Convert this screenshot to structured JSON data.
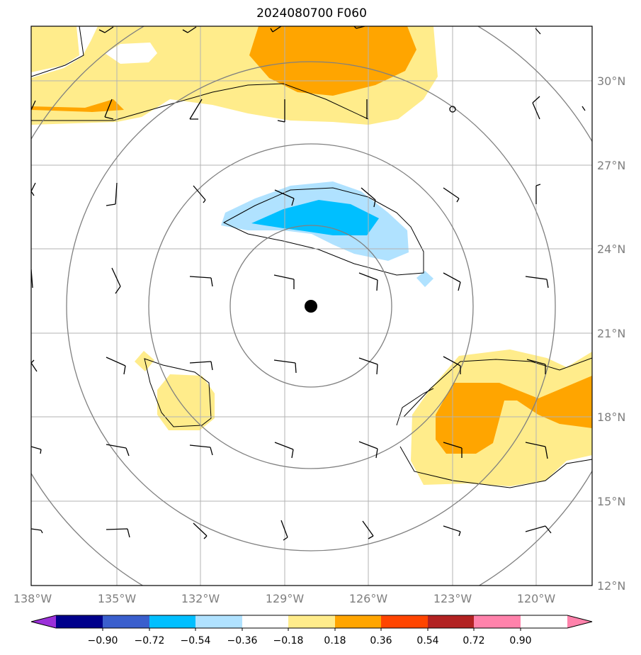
{
  "title": "2024080700 F060",
  "lat_labels": [
    "30°N",
    "27°N",
    "24°N",
    "21°N",
    "18°N",
    "15°N",
    "12°N"
  ],
  "lon_labels": [
    "138°W",
    "135°W",
    "132°W",
    "129°W",
    "126°W",
    "123°W",
    "120°W"
  ],
  "colorbar": {
    "colors": [
      "#9b30d9",
      "#00008b",
      "#3a5fcd",
      "#00bfff",
      "#b0e2ff",
      "#ffffff",
      "#ffec8b",
      "#ffa500",
      "#ff4500",
      "#b22222",
      "#ff82ab"
    ],
    "labels": [
      "−0.90",
      "−0.72",
      "−0.54",
      "−0.36",
      "−0.18",
      "0.18",
      "0.36",
      "0.54",
      "0.72",
      "0.90"
    ]
  },
  "storm_center": {
    "lat": 22.0,
    "lon": -128.0
  },
  "range_rings_deg": [
    3,
    6,
    9,
    12
  ]
}
